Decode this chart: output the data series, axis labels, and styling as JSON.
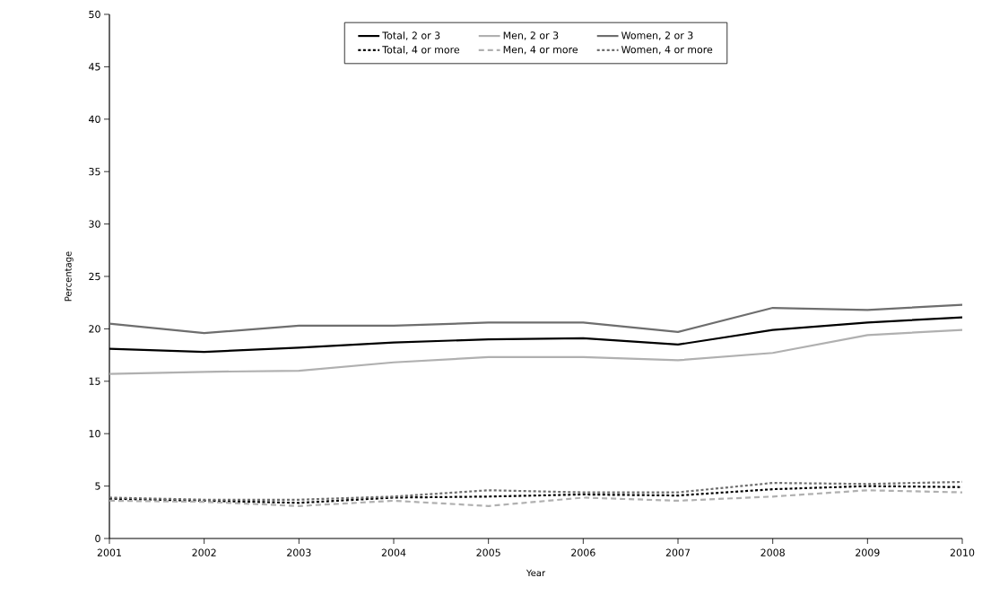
{
  "chart_data": {
    "type": "line",
    "xlabel": "Year",
    "ylabel": "Percentage",
    "x": [
      2001,
      2002,
      2003,
      2004,
      2005,
      2006,
      2007,
      2008,
      2009,
      2010
    ],
    "xlim": [
      2001,
      2010
    ],
    "xticks": [
      2001,
      2002,
      2003,
      2004,
      2005,
      2006,
      2007,
      2008,
      2009,
      2010
    ],
    "ylim": [
      0,
      50
    ],
    "yticks": [
      0,
      5,
      10,
      15,
      20,
      25,
      30,
      35,
      40,
      45,
      50
    ],
    "grid": false,
    "legend": "top",
    "marker": "none",
    "series": [
      {
        "name": "Total, 2 or 3",
        "color": "#000000",
        "line_style": "solid",
        "values": [
          18.1,
          17.8,
          18.2,
          18.7,
          19.0,
          19.1,
          18.5,
          19.9,
          20.6,
          21.1
        ]
      },
      {
        "name": "Men, 2 or 3",
        "color": "#b0b0b0",
        "line_style": "solid",
        "values": [
          15.7,
          15.9,
          16.0,
          16.8,
          17.3,
          17.3,
          17.0,
          17.7,
          19.4,
          19.9
        ]
      },
      {
        "name": "Women, 2 or 3",
        "color": "#6e6e6e",
        "line_style": "solid",
        "values": [
          20.5,
          19.6,
          20.3,
          20.3,
          20.6,
          20.6,
          19.7,
          22.0,
          21.8,
          22.3
        ]
      },
      {
        "name": "Total, 4 or more",
        "color": "#000000",
        "line_style": "dotted",
        "values": [
          3.8,
          3.6,
          3.4,
          3.9,
          4.0,
          4.2,
          4.1,
          4.7,
          5.0,
          4.9
        ]
      },
      {
        "name": "Men, 4 or more",
        "color": "#b0b0b0",
        "line_style": "dashed",
        "values": [
          3.6,
          3.5,
          3.1,
          3.6,
          3.1,
          3.9,
          3.6,
          4.0,
          4.6,
          4.4
        ]
      },
      {
        "name": "Women, 4 or more",
        "color": "#6e6e6e",
        "line_style": "dotted",
        "values": [
          3.9,
          3.7,
          3.7,
          4.0,
          4.6,
          4.4,
          4.4,
          5.3,
          5.2,
          5.4
        ]
      }
    ]
  }
}
